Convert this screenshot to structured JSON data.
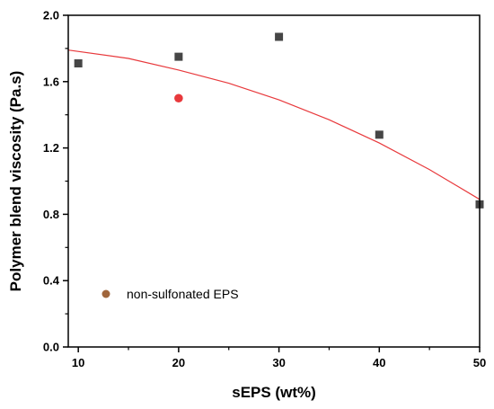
{
  "chart_data": {
    "type": "scatter",
    "xlabel": "sEPS (wt%)",
    "ylabel": "Polymer blend viscosity (Pa.s)",
    "xlim": [
      9,
      50
    ],
    "ylim": [
      0.0,
      2.0
    ],
    "x_ticks": [
      10,
      20,
      30,
      40,
      50
    ],
    "x_tick_labels": [
      "10",
      "20",
      "30",
      "40",
      "50"
    ],
    "y_ticks": [
      0.0,
      0.4,
      0.8,
      1.2,
      1.6,
      2.0
    ],
    "y_tick_labels": [
      "0.0",
      "0.4",
      "0.8",
      "1.2",
      "1.6",
      "2.0"
    ],
    "grid": false,
    "series": [
      {
        "marker": "square",
        "color": "#464646",
        "x": [
          10,
          20,
          30,
          40,
          50
        ],
        "y": [
          1.71,
          1.75,
          1.87,
          1.28,
          0.86
        ]
      },
      {
        "name": "non-sulfonated EPS",
        "marker": "circle",
        "color": "#e8393c",
        "x": [
          20
        ],
        "y": [
          1.5
        ]
      }
    ],
    "fit_curve": {
      "type": "line",
      "color": "#e8393c",
      "x": [
        9,
        15,
        20,
        25,
        30,
        35,
        40,
        45,
        50
      ],
      "y": [
        1.79,
        1.74,
        1.67,
        1.59,
        1.49,
        1.37,
        1.23,
        1.07,
        0.89
      ]
    },
    "legend": {
      "placement": "bottom-left",
      "entries": [
        {
          "label": "non-sulfonated EPS",
          "marker": "circle",
          "color": "#a0663c"
        }
      ]
    }
  }
}
